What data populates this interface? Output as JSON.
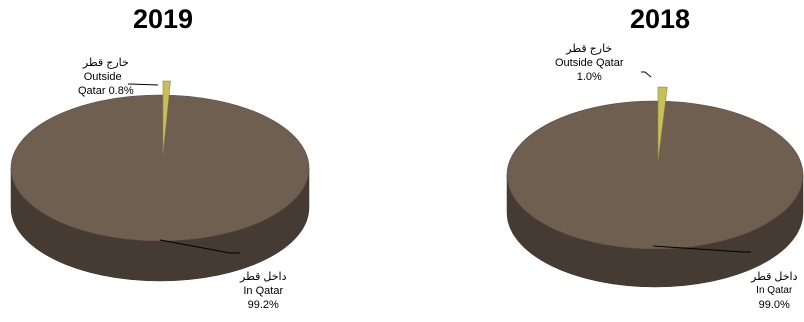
{
  "chart_data": [
    {
      "type": "pie",
      "title": "2019",
      "slices": [
        {
          "label_ar": "داخل قطر",
          "label_en": "In Qatar",
          "pct_label": "99.2%",
          "value": 99.2,
          "color": "#6f5f50"
        },
        {
          "label_ar": "خارج قطر",
          "label_en": "Outside Qatar",
          "pct_label": "0.8%",
          "value": 0.8,
          "color": "#c8bf5a"
        }
      ]
    },
    {
      "type": "pie",
      "title": "2018",
      "slices": [
        {
          "label_ar": "داخل قطر",
          "label_en": "In Qatar",
          "pct_label": "99.0%",
          "value": 99.0,
          "color": "#6f5f50"
        },
        {
          "label_ar": "خارج قطر",
          "label_en": "Outside Qatar",
          "pct_label": "1.0%",
          "value": 1.0,
          "color": "#c8bf5a"
        }
      ]
    }
  ],
  "labels": {
    "c2019": {
      "outside_ar": "خارج قطر",
      "outside_l1": "Outside",
      "outside_l2": "Qatar 0.8%",
      "inside_ar": "داخل قطر",
      "inside_en": "In Qatar",
      "inside_pct": "99.2%"
    },
    "c2018": {
      "outside_ar": "خارج قطر",
      "outside_l1": "Outside Qatar",
      "outside_l2": "1.0%",
      "inside_ar": "داخل قطر",
      "inside_en": "In Qatar",
      "inside_pct": "99.0%"
    }
  }
}
